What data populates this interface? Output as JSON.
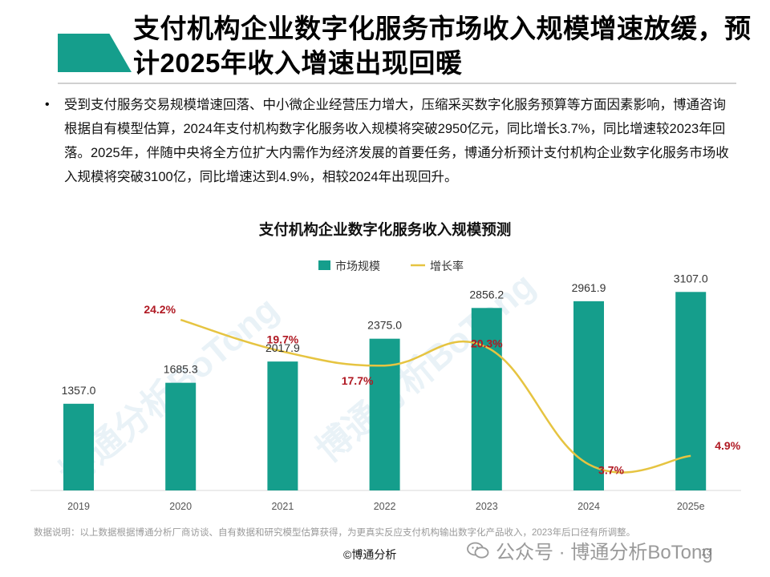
{
  "title": "支付机构企业数字化服务市场收入规模增速放缓，预计2025年收入增速出现回暖",
  "body_text": "受到支付服务交易规模增速回落、中小微企业经营压力增大，压缩采买数字化服务预算等方面因素影响，博通咨询根据自有模型估算，2024年支付机构数字化服务收入规模将突破2950亿元，同比增长3.7%，同比增速较2023年回落。2025年，伴随中央将全方位扩大内需作为经济发展的首要任务，博通分析预计支付机构企业数字化服务市场收入规模将突破3100亿，同比增速达到4.9%，相较2024年出现回升。",
  "chart_data": {
    "type": "bar",
    "title": "支付机构企业数字化服务收入规模预测",
    "categories": [
      "2019",
      "2020",
      "2021",
      "2022",
      "2023",
      "2024",
      "2025e"
    ],
    "series": [
      {
        "name": "市场规模",
        "type": "bar",
        "values": [
          1357.0,
          1685.3,
          2017.9,
          2375.0,
          2856.2,
          2961.9,
          3107.0
        ]
      },
      {
        "name": "增长率",
        "type": "line",
        "values": [
          null,
          24.2,
          19.7,
          17.7,
          20.3,
          3.7,
          4.9
        ],
        "unit": "%"
      }
    ],
    "bar_labels": [
      "1357.0",
      "1685.3",
      "2017.9",
      "2375.0",
      "2856.2",
      "2961.9",
      "3107.0"
    ],
    "rate_labels": [
      "",
      "24.2%",
      "19.7%",
      "17.7%",
      "20.3%",
      "3.7%",
      "4.9%"
    ],
    "ylim": [
      0,
      3600
    ],
    "rate_ylim": [
      0,
      30
    ],
    "legend_position": "top-center",
    "colors": {
      "bar": "#159e8c",
      "line": "#e6c441",
      "rate_label": "#b01923"
    }
  },
  "watermark": "博通分析BoTong",
  "source_note": "数据说明：以上数据根据博通分析厂商访谈、自有数据和研究模型估算获得，为更真实反应支付机构输出数字化产品收入，2023年后口径有所调整。",
  "footer_brand": "©博通分析",
  "wechat_label": "公众号 · 博通分析BoTong",
  "page_number": "13",
  "icons": {
    "title_marker": "title-marker-icon",
    "wechat": "wechat-icon"
  }
}
